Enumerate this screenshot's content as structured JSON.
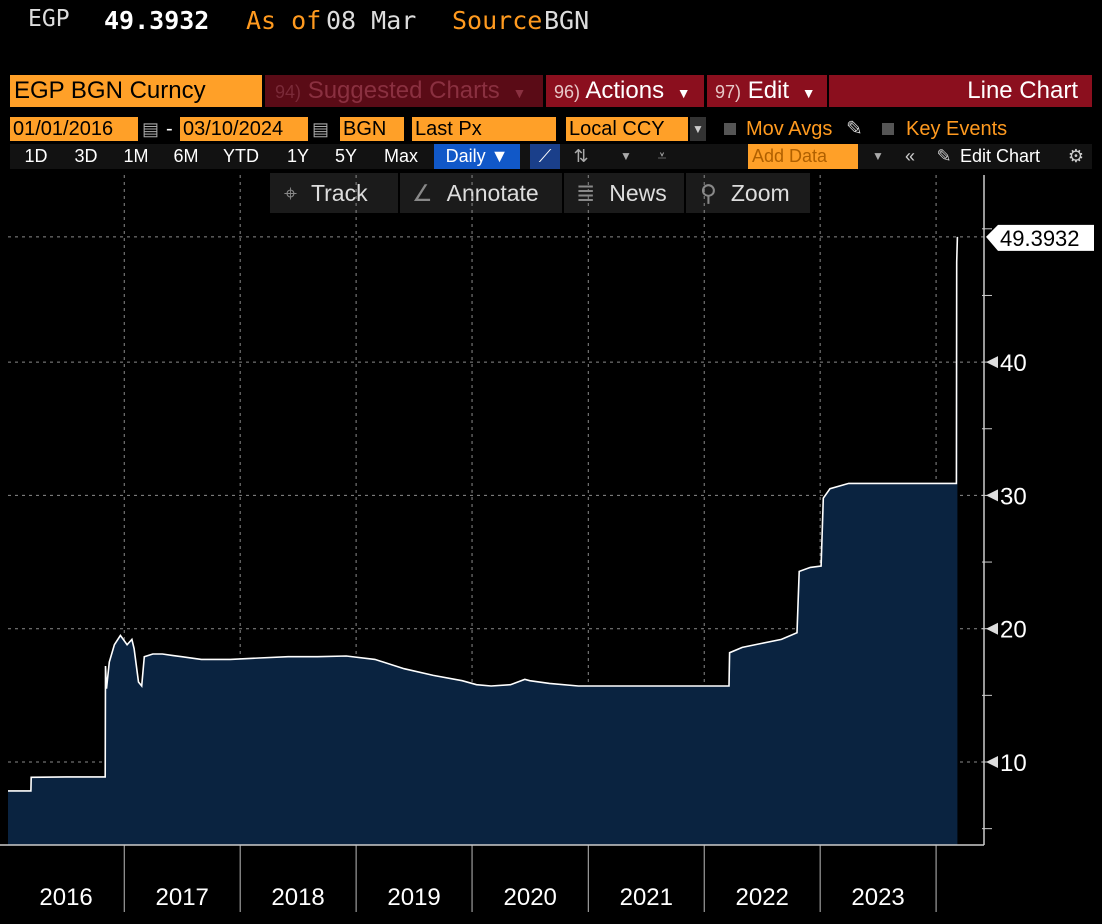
{
  "header": {
    "ticker": "EGP",
    "price": "49.3932",
    "as_of_label": "As of",
    "as_of_date": "08 Mar",
    "source_label": "Source",
    "source_value": "BGN"
  },
  "toolbar": {
    "security": "EGP BGN Curncy",
    "suggested_num": "94)",
    "suggested_label": "Suggested Charts",
    "actions_num": "96)",
    "actions_label": "Actions",
    "edit_num": "97)",
    "edit_label": "Edit",
    "view_label": "Line Chart"
  },
  "range_bar": {
    "start_date": "01/01/2016",
    "separator": "-",
    "end_date": "03/10/2024",
    "source": "BGN",
    "field": "Last Px",
    "currency": "Local CCY",
    "mov_avgs": "Mov Avgs",
    "key_events": "Key Events"
  },
  "period_bar": {
    "periods": [
      "1D",
      "3D",
      "1M",
      "6M",
      "YTD",
      "1Y",
      "5Y",
      "Max"
    ],
    "frequency": "Daily ▼",
    "add_data": "Add Data",
    "edit_chart": "Edit Chart"
  },
  "tools": {
    "track": "Track",
    "annotate": "Annotate",
    "news": "News",
    "zoom": "Zoom"
  },
  "icons": {
    "track": "crosshair-icon",
    "annotate": "pencil-icon",
    "news": "news-icon",
    "zoom": "magnifier-icon",
    "settings": "gear-icon",
    "calendar": "calendar-icon"
  },
  "colors": {
    "accent_orange": "#ffa028",
    "menu_red": "#8b0f1e",
    "area_fill": "#0a2340",
    "line": "#ffffff",
    "active_blue": "#1158c8"
  },
  "chart_data": {
    "type": "area",
    "title": "",
    "xlabel": "",
    "ylabel": "",
    "x_tick_labels": [
      "2016",
      "2017",
      "2018",
      "2019",
      "2020",
      "2021",
      "2022",
      "2023"
    ],
    "y_tick_labels": [
      "10",
      "20",
      "30",
      "40"
    ],
    "y_ticks": [
      10,
      20,
      30,
      40
    ],
    "ylim": [
      4.8,
      51.2
    ],
    "xlim": [
      "2016-01-01",
      "2024-03-10"
    ],
    "grid": true,
    "last_value_label": "49.3932",
    "last_value": 49.3932,
    "series": [
      {
        "x": [
          "2016-01-01",
          "2016-03-13",
          "2016-03-14",
          "2016-07-01",
          "2016-11-02",
          "2016-11-03",
          "2016-11-06",
          "2016-11-15",
          "2016-12-01",
          "2016-12-20",
          "2017-01-10",
          "2017-01-25",
          "2017-02-01",
          "2017-02-15",
          "2017-02-25",
          "2017-03-05",
          "2017-04-01",
          "2017-05-01",
          "2017-06-01",
          "2017-07-01",
          "2017-09-01",
          "2017-12-01",
          "2018-03-01",
          "2018-06-01",
          "2018-09-01",
          "2018-12-01",
          "2019-03-01",
          "2019-06-01",
          "2019-09-01",
          "2019-12-01",
          "2020-01-15",
          "2020-03-01",
          "2020-05-01",
          "2020-06-15",
          "2020-07-01",
          "2020-09-01",
          "2020-12-01",
          "2021-03-01",
          "2021-06-01",
          "2021-09-01",
          "2021-12-01",
          "2022-03-01",
          "2022-03-20",
          "2022-03-22",
          "2022-05-01",
          "2022-07-01",
          "2022-09-01",
          "2022-10-20",
          "2022-10-27",
          "2022-12-01",
          "2023-01-04",
          "2023-01-11",
          "2023-02-01",
          "2023-04-01",
          "2023-07-01",
          "2023-10-01",
          "2024-01-01",
          "2024-03-05",
          "2024-03-06",
          "2024-03-08"
        ],
        "y": [
          7.83,
          7.83,
          8.85,
          8.88,
          8.88,
          17.2,
          15.5,
          17.5,
          18.8,
          19.5,
          18.8,
          19.2,
          18.5,
          16.0,
          15.7,
          17.9,
          18.1,
          18.1,
          18.0,
          17.9,
          17.7,
          17.7,
          17.8,
          17.9,
          17.9,
          17.95,
          17.7,
          17.0,
          16.5,
          16.1,
          15.8,
          15.7,
          15.8,
          16.2,
          16.1,
          15.9,
          15.7,
          15.7,
          15.7,
          15.7,
          15.7,
          15.7,
          15.7,
          18.2,
          18.6,
          18.9,
          19.2,
          19.7,
          24.3,
          24.6,
          24.7,
          29.8,
          30.5,
          30.9,
          30.9,
          30.9,
          30.9,
          30.9,
          47.5,
          49.3932
        ]
      }
    ]
  }
}
